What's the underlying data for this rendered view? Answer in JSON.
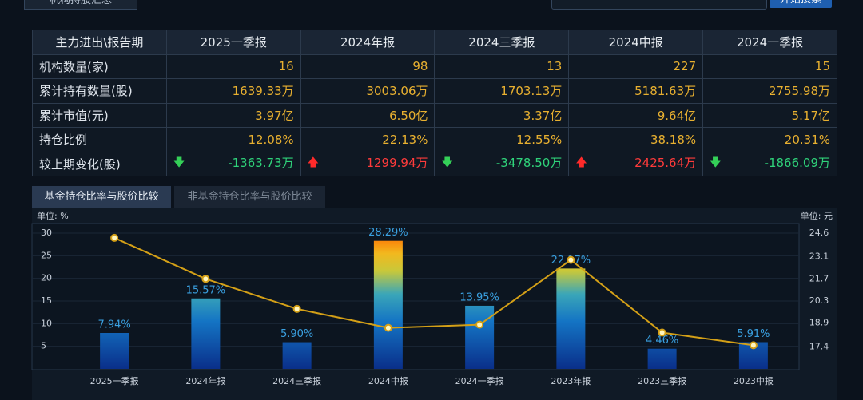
{
  "top": {
    "tab": "机构持股汇总",
    "button": "开始搜索"
  },
  "table": {
    "header": [
      "主力进出\\报告期",
      "2025一季报",
      "2024年报",
      "2024三季报",
      "2024中报",
      "2024一季报"
    ],
    "rows": [
      [
        "机构数量(家)",
        "16",
        "98",
        "13",
        "227",
        "15"
      ],
      [
        "累计持有数量(股)",
        "1639.33万",
        "3003.06万",
        "1703.13万",
        "5181.63万",
        "2755.98万"
      ],
      [
        "累计市值(元)",
        "3.97亿",
        "6.50亿",
        "3.37亿",
        "9.64亿",
        "5.17亿"
      ],
      [
        "持仓比例",
        "12.08%",
        "22.13%",
        "12.55%",
        "38.18%",
        "20.31%"
      ],
      [
        "较上期变化(股)",
        "-1363.73万",
        "1299.94万",
        "-3478.50万",
        "2425.64万",
        "-1866.09万"
      ]
    ]
  },
  "tabs": [
    "基金持仓比率与股价比较",
    "非基金持仓比率与股价比较"
  ],
  "chart_data": {
    "type": "bar",
    "y_label": "单位: %",
    "y2_label": "单位: 元",
    "categories": [
      "2025一季报",
      "2024年报",
      "2024三季报",
      "2024中报",
      "2024一季报",
      "2023年报",
      "2023三季报",
      "2023中报"
    ],
    "series": [
      {
        "type": "bar",
        "values": [
          7.94,
          15.57,
          5.9,
          28.29,
          13.95,
          22.17,
          4.46,
          5.91
        ],
        "value_labels": [
          "7.94%",
          "15.57%",
          "5.90%",
          "28.29%",
          "13.95%",
          "22.17%",
          "4.46%",
          "5.91%"
        ]
      },
      {
        "type": "line",
        "axis": "y2",
        "color": "#d4a017",
        "values": [
          24.3,
          21.7,
          19.8,
          18.6,
          18.8,
          22.9,
          18.3,
          17.5
        ]
      }
    ],
    "ylim": [
      0,
      30
    ],
    "yticks": [
      5,
      10,
      15,
      20,
      25,
      30
    ],
    "y2lim": [
      16,
      24.6
    ],
    "y2ticks": [
      17.4,
      18.9,
      20.3,
      21.7,
      23.1,
      24.6
    ]
  }
}
